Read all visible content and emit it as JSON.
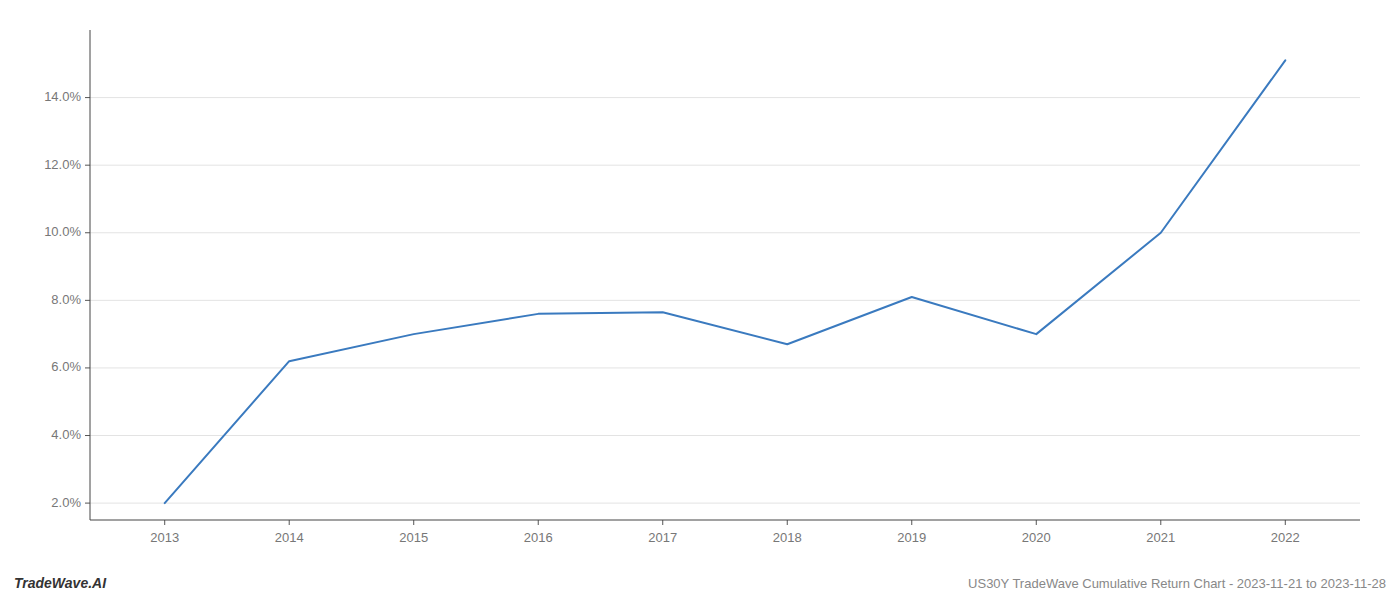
{
  "chart_data": {
    "type": "line",
    "x": [
      2013,
      2014,
      2015,
      2016,
      2017,
      2018,
      2019,
      2020,
      2021,
      2022
    ],
    "values": [
      2.0,
      6.2,
      7.0,
      7.6,
      7.65,
      6.7,
      8.1,
      7.0,
      10.0,
      15.1
    ],
    "color": "#3a7abf",
    "xlim": [
      2012.4,
      2022.6
    ],
    "xticks": [
      2013,
      2014,
      2015,
      2016,
      2017,
      2018,
      2019,
      2020,
      2021,
      2022
    ],
    "ylim": [
      1.5,
      16.0
    ],
    "yticks": [
      {
        "value": 2.0,
        "label": "2.0%"
      },
      {
        "value": 4.0,
        "label": "4.0%"
      },
      {
        "value": 6.0,
        "label": "6.0%"
      },
      {
        "value": 8.0,
        "label": "8.0%"
      },
      {
        "value": 10.0,
        "label": "10.0%"
      },
      {
        "value": 12.0,
        "label": "12.0%"
      },
      {
        "value": 14.0,
        "label": "14.0%"
      }
    ],
    "grid": true,
    "annotations": [
      "TradeWave.AI",
      "US30Y TradeWave Cumulative Return Chart - 2023-11-21 to 2023-11-28"
    ]
  }
}
